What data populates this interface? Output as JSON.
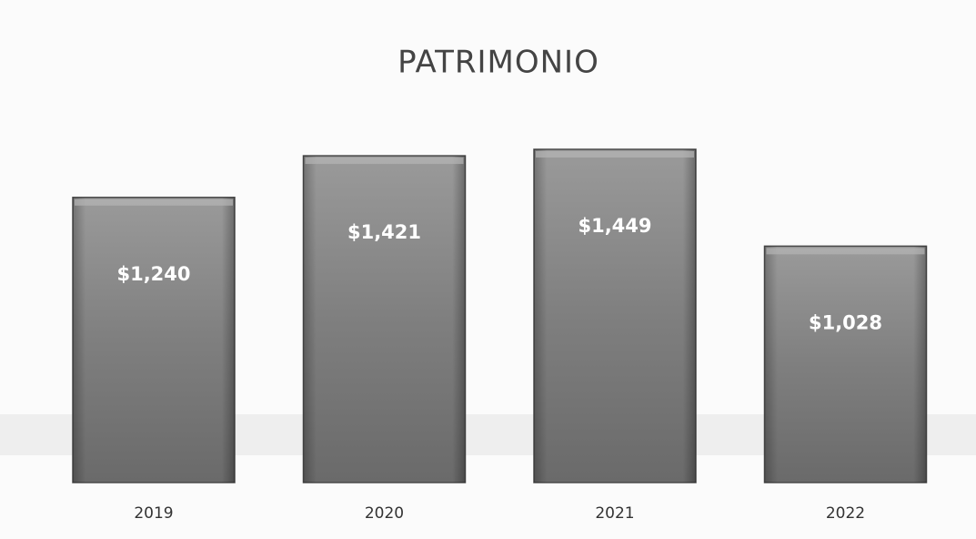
{
  "chart_data": {
    "type": "bar",
    "title": "PATRIMONIO",
    "categories": [
      "2019",
      "2020",
      "2021",
      "2022"
    ],
    "values": [
      1240,
      1421,
      1449,
      1028
    ],
    "value_labels": [
      "$1,240",
      "$1,421",
      "$1,449",
      "$1,028"
    ],
    "color": "#7c7c7c"
  }
}
